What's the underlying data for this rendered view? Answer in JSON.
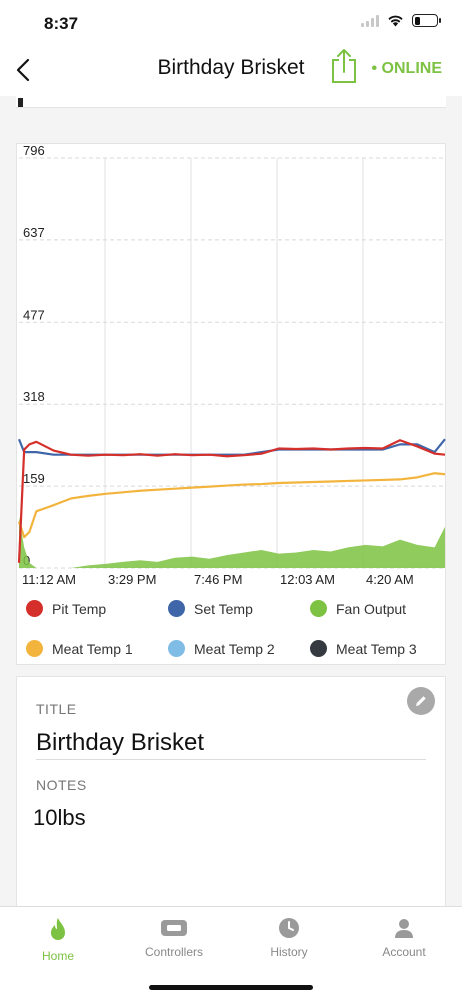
{
  "status_bar": {
    "time": "8:37"
  },
  "nav": {
    "title": "Birthday Brisket",
    "status": "• ONLINE"
  },
  "colors": {
    "accent": "#7dc242",
    "pit_temp": "#d42f2a",
    "set_temp": "#3f66a8",
    "fan_output": "#7dc242",
    "meat_temp_1": "#f2b43c",
    "meat_temp_2": "#7fbce6",
    "meat_temp_3": "#343a40"
  },
  "chart_data": {
    "type": "line",
    "ylim": [
      0,
      796
    ],
    "y_ticks": [
      "796",
      "637",
      "477",
      "318",
      "159",
      "0"
    ],
    "x_ticks": [
      "11:12 AM",
      "3:29 PM",
      "7:46 PM",
      "12:03 AM",
      "4:20 AM"
    ],
    "grid": true,
    "legend_position": "bottom",
    "x_hours": [
      0,
      0.3,
      0.6,
      1,
      2,
      3,
      4,
      5,
      6,
      7,
      8,
      9,
      10,
      11,
      12,
      13,
      14,
      15,
      16,
      17,
      18,
      19,
      20,
      21,
      22,
      23,
      24,
      24.6
    ],
    "series": [
      {
        "name": "Pit Temp",
        "color": "#d42f2a",
        "values": [
          10,
          230,
          240,
          245,
          228,
          220,
          218,
          220,
          219,
          221,
          218,
          221,
          219,
          220,
          217,
          219,
          222,
          232,
          231,
          232,
          230,
          232,
          233,
          232,
          248,
          236,
          222,
          220
        ]
      },
      {
        "name": "Set Temp",
        "color": "#3f66a8",
        "values": [
          250,
          225,
          225,
          225,
          220,
          220,
          220,
          220,
          220,
          220,
          220,
          220,
          220,
          220,
          220,
          220,
          225,
          230,
          230,
          230,
          230,
          230,
          230,
          230,
          240,
          240,
          225,
          250
        ]
      },
      {
        "name": "Fan Output",
        "color": "#7dc242",
        "values": [
          100,
          40,
          10,
          0,
          0,
          0,
          5,
          8,
          12,
          15,
          12,
          20,
          22,
          18,
          25,
          30,
          35,
          28,
          30,
          35,
          32,
          40,
          45,
          42,
          55,
          45,
          40,
          80
        ]
      },
      {
        "name": "Meat Temp 1",
        "color": "#f2b43c",
        "values": [
          90,
          60,
          70,
          110,
          122,
          135,
          140,
          144,
          147,
          150,
          152,
          154,
          156,
          158,
          160,
          162,
          163,
          165,
          166,
          167,
          168,
          169,
          170,
          171,
          172,
          176,
          184,
          182
        ]
      },
      {
        "name": "Meat Temp 2",
        "color": "#7fbce6",
        "values": []
      },
      {
        "name": "Meat Temp 3",
        "color": "#343a40",
        "values": []
      }
    ]
  },
  "legend": [
    {
      "label": "Pit Temp",
      "color": "#d42f2a"
    },
    {
      "label": "Set Temp",
      "color": "#3f66a8"
    },
    {
      "label": "Fan Output",
      "color": "#7dc242"
    },
    {
      "label": "Meat Temp 1",
      "color": "#f2b43c"
    },
    {
      "label": "Meat Temp 2",
      "color": "#7fbce6"
    },
    {
      "label": "Meat Temp 3",
      "color": "#343a40"
    }
  ],
  "details": {
    "title_label": "TITLE",
    "title_value": "Birthday Brisket",
    "notes_label": "NOTES",
    "notes_value": "10lbs"
  },
  "tabs": [
    {
      "label": "Home",
      "icon": "flame-icon",
      "active": true
    },
    {
      "label": "Controllers",
      "icon": "controller-icon",
      "active": false
    },
    {
      "label": "History",
      "icon": "clock-icon",
      "active": false
    },
    {
      "label": "Account",
      "icon": "person-icon",
      "active": false
    }
  ]
}
